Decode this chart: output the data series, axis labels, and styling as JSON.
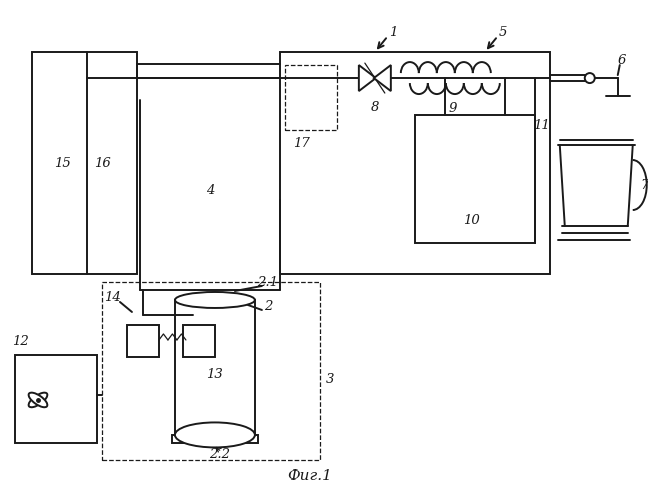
{
  "title": "Фиг.1",
  "bg_color": "#ffffff",
  "line_color": "#1a1a1a",
  "lw": 1.4,
  "tlw": 0.9,
  "fs": 9.5
}
